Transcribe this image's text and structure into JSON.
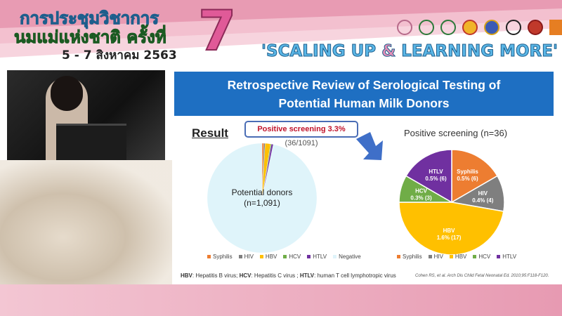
{
  "header": {
    "thai_line1": "การประชุมวิชาการ",
    "thai_line2": "นมแม่แห่งชาติ ครั้งที่",
    "date": "5 - 7 สิงหาคม 2563",
    "edition": "7",
    "tagline_part1": "'SCALING UP ",
    "tagline_amp": "&",
    "tagline_part2": " LEARNING MORE'",
    "logos": [
      "breastfeeding-logo",
      "moph-logo",
      "moph-logo-2",
      "rtaf-logo",
      "royal-college-logo",
      "university-logo",
      "ministry-logo",
      "thaihealth-logo"
    ]
  },
  "slide": {
    "title_line1": "Retrospective Review of Serological Testing of",
    "title_line2": "Potential Human Milk Donors",
    "result_heading": "Result",
    "callout_bold": "Positive screening 3.3%",
    "callout_rest": " (36/1091)",
    "footnote_hbv": "HBV",
    "footnote_hbv_text": ": Hepatitis B virus; ",
    "footnote_hcv": "HCV",
    "footnote_hcv_text": ": Hepatitis C virus ; ",
    "footnote_htlv": "HTLV",
    "footnote_htlv_text": ": human T cell lymphotropic virus",
    "citation": "Cohen RS, et al. Arch Dis Child Fetal Neonatal Ed. 2010;95:F118-F120.",
    "colors": {
      "banner": "#1e6fc2",
      "arrow": "#3f6fc8"
    }
  },
  "chart_data": [
    {
      "type": "pie",
      "title": "",
      "center_label_line1": "Potential donors",
      "center_label_line2": "(n=1,091)",
      "categories": [
        "Syphilis",
        "HIV",
        "HBV",
        "HCV",
        "HTLV",
        "Negative"
      ],
      "values": [
        6,
        4,
        17,
        3,
        6,
        1055
      ],
      "colors": [
        "#ed7d31",
        "#7f7f7f",
        "#ffc000",
        "#70ad47",
        "#7030a0",
        "#dff4fa"
      ],
      "legend": "bottom"
    },
    {
      "type": "pie",
      "title": "Positive screening (n=36)",
      "categories": [
        "Syphilis",
        "HIV",
        "HBV",
        "HCV",
        "HTLV"
      ],
      "values": [
        6,
        4,
        17,
        3,
        6
      ],
      "data_labels": [
        "0.5% (6)",
        "0.4% (4)",
        "1.6% (17)",
        "0.3% (3)",
        "0.5% (6)"
      ],
      "colors": [
        "#ed7d31",
        "#7f7f7f",
        "#ffc000",
        "#70ad47",
        "#7030a0"
      ],
      "legend": "bottom"
    }
  ]
}
